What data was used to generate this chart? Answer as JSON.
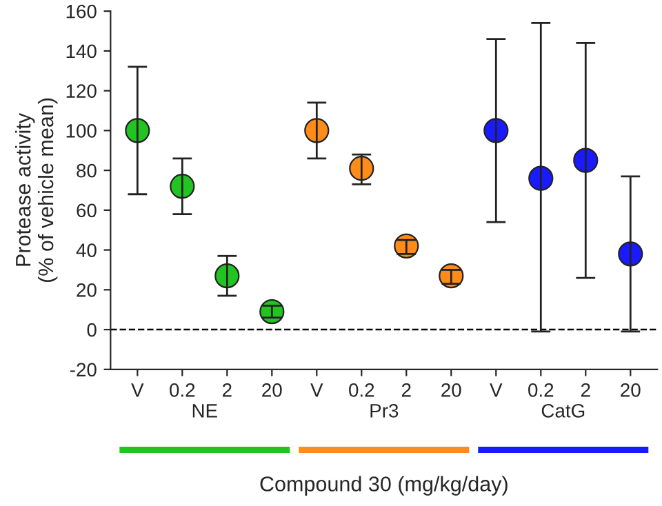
{
  "chart_data": {
    "type": "scatter",
    "xlabel": "Compound 30 (mg/kg/day)",
    "ylabel": "Protease activity\n(% of vehicle mean)",
    "categories": [
      "V",
      "0.2",
      "2",
      "20",
      "V",
      "0.2",
      "2",
      "20",
      "V",
      "0.2",
      "2",
      "20"
    ],
    "series": [
      {
        "color": "#22c422",
        "values": [
          100,
          72,
          27,
          9,
          null,
          null,
          null,
          null,
          null,
          null,
          null,
          null
        ],
        "errors": [
          [
            68,
            132
          ],
          [
            58,
            86
          ],
          [
            17,
            37
          ],
          [
            6,
            12
          ],
          null,
          null,
          null,
          null,
          null,
          null,
          null,
          null
        ]
      },
      {
        "color": "#ff8c1a",
        "values": [
          null,
          null,
          null,
          null,
          100,
          81,
          42,
          27,
          null,
          null,
          null,
          null
        ],
        "errors": [
          null,
          null,
          null,
          null,
          [
            86,
            114
          ],
          [
            73,
            88
          ],
          [
            38,
            45
          ],
          [
            23,
            30
          ],
          null,
          null,
          null,
          null
        ]
      },
      {
        "color": "#1a1aff",
        "values": [
          null,
          null,
          null,
          null,
          null,
          null,
          null,
          null,
          100,
          76,
          85,
          38
        ],
        "errors": [
          null,
          null,
          null,
          null,
          null,
          null,
          null,
          null,
          [
            54,
            146
          ],
          [
            -1,
            154
          ],
          [
            26,
            144
          ],
          [
            -1,
            77
          ]
        ]
      }
    ],
    "ylim": [
      -20,
      160
    ],
    "yticks": [
      -20,
      0,
      20,
      40,
      60,
      80,
      100,
      120,
      140,
      160
    ],
    "ref_lines": [
      {
        "axis": "y",
        "value": 0,
        "color": "#000000",
        "line_style": "dashed"
      }
    ],
    "annotations": [
      "NE",
      "Pr3",
      "CatG"
    ],
    "marker": "circle",
    "grid": false,
    "legend": false
  }
}
